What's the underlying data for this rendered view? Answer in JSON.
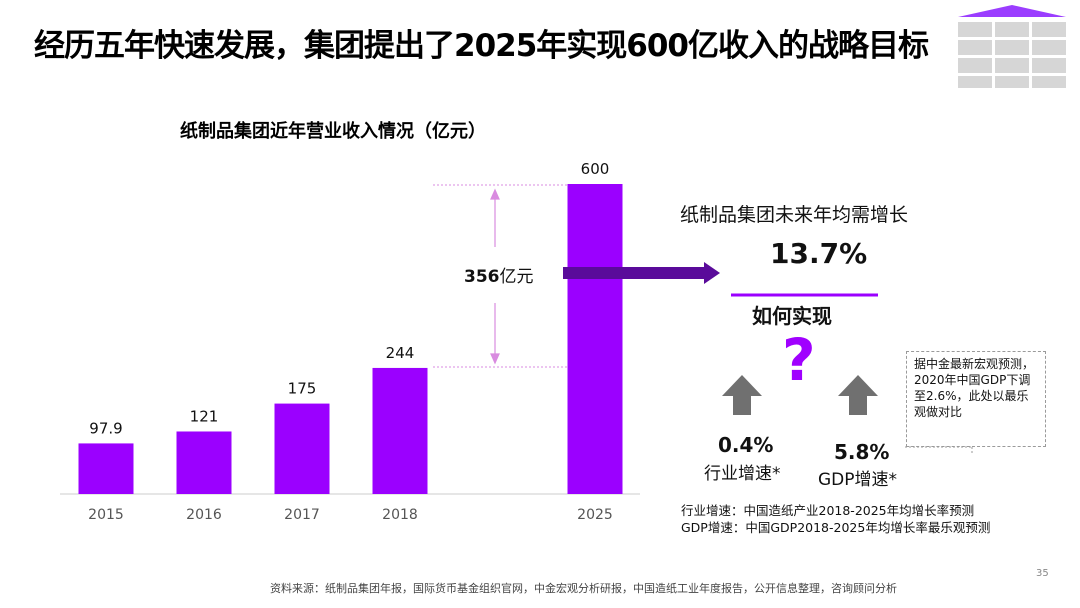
{
  "title": "经历五年快速发展，集团提出了2025年实现600亿收入的战略目标",
  "colors": {
    "accent": "#9b00ff",
    "arrow": "#5a0b9a",
    "up_arrow": "#6f6f6f",
    "dashed": "#d98be0"
  },
  "bracket": {
    "value": "356",
    "unit": "亿元"
  },
  "cagr": {
    "title": "纸制品集团未来年均需增长",
    "value": "13.7%"
  },
  "how": {
    "label": "如何实现",
    "icon": "question-mark-icon"
  },
  "industry": {
    "value": "0.4%",
    "label": "行业增速*",
    "icon": "up-arrow-icon"
  },
  "gdp": {
    "value": "5.8%",
    "label": "GDP增速*",
    "icon": "up-arrow-icon"
  },
  "note": "据中金最新宏观预测，2020年中国GDP下调至2.6%，此处以最乐观做对比",
  "definitions": {
    "line1": "行业增速：中国造纸产业2018-2025年均增长率预测",
    "line2": "GDP增速：中国GDP2018-2025年均增长率最乐观预测"
  },
  "source": "资料来源：纸制品集团年报，国际货币基金组织官网，中金宏观分析研报，中国造纸工业年度报告，公开信息整理，咨询顾问分析",
  "page_number": "35",
  "chart_data": {
    "type": "bar",
    "title": "纸制品集团近年营业收入情况（亿元）",
    "categories": [
      "2015",
      "2016",
      "2017",
      "2018",
      "2025"
    ],
    "values": [
      97.9,
      121,
      175,
      244,
      600
    ],
    "labels": [
      "97.9",
      "121",
      "175",
      "244",
      "600"
    ],
    "ylim": [
      0,
      600
    ],
    "grid": false
  }
}
